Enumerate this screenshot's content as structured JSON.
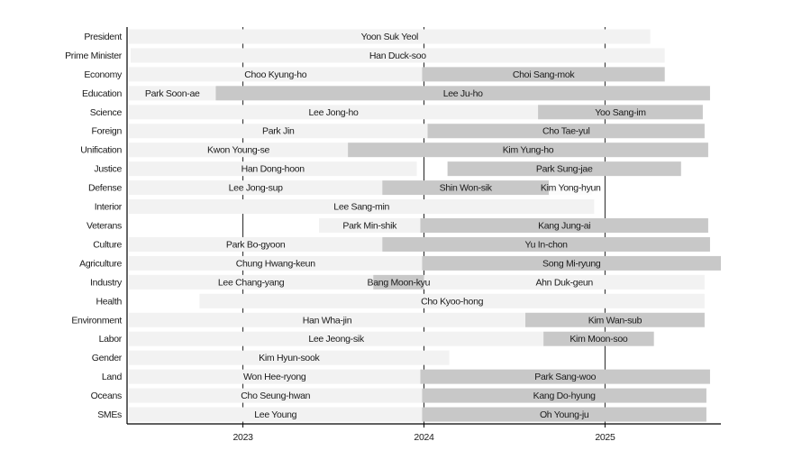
{
  "chart_data": {
    "type": "gantt",
    "title": "",
    "xlabel": "",
    "ylabel": "",
    "xlim": [
      2022.36,
      2025.64
    ],
    "x_ticks": [
      2023,
      2024,
      2025
    ],
    "x_tick_labels": [
      "2023",
      "2024",
      "2025"
    ],
    "grid": "vertical lines at year ticks",
    "colors": {
      "first_tenure": "#f2f2f2",
      "successor": "#c8c8c8",
      "axis": "#000000"
    },
    "rows": [
      {
        "role": "President",
        "terms": [
          {
            "name": "Yoon Suk Yeol",
            "start": 2022.37,
            "end": 2025.25,
            "shade": "light"
          }
        ]
      },
      {
        "role": "Prime Minister",
        "terms": [
          {
            "name": "Han Duck-soo",
            "start": 2022.38,
            "end": 2025.33,
            "shade": "light"
          }
        ]
      },
      {
        "role": "Economy",
        "terms": [
          {
            "name": "Choo Kyung-ho",
            "start": 2022.37,
            "end": 2023.99,
            "shade": "light"
          },
          {
            "name": "Choi Sang-mok",
            "start": 2023.99,
            "end": 2025.33,
            "shade": "dark"
          }
        ]
      },
      {
        "role": "Education",
        "terms": [
          {
            "name": "Park Soon-ae",
            "start": 2022.37,
            "end": 2022.85,
            "shade": "light"
          },
          {
            "name": "Lee Ju-ho",
            "start": 2022.85,
            "end": 2025.58,
            "shade": "dark"
          }
        ]
      },
      {
        "role": "Science",
        "terms": [
          {
            "name": "Lee Jong-ho",
            "start": 2022.37,
            "end": 2024.63,
            "shade": "light"
          },
          {
            "name": "Yoo Sang-im",
            "start": 2024.63,
            "end": 2025.54,
            "shade": "dark"
          }
        ]
      },
      {
        "role": "Foreign",
        "terms": [
          {
            "name": "Park Jin",
            "start": 2022.37,
            "end": 2024.02,
            "shade": "light"
          },
          {
            "name": "Cho Tae-yul",
            "start": 2024.02,
            "end": 2025.55,
            "shade": "dark"
          }
        ]
      },
      {
        "role": "Unification",
        "terms": [
          {
            "name": "Kwon Young-se",
            "start": 2022.37,
            "end": 2023.58,
            "shade": "light"
          },
          {
            "name": "Kim Yung-ho",
            "start": 2023.58,
            "end": 2025.57,
            "shade": "dark"
          }
        ]
      },
      {
        "role": "Justice",
        "terms": [
          {
            "name": "Han Dong-hoon",
            "start": 2022.37,
            "end": 2023.96,
            "shade": "light"
          },
          {
            "name": "Park Sung-jae",
            "start": 2024.13,
            "end": 2025.42,
            "shade": "dark"
          }
        ]
      },
      {
        "role": "Defense",
        "terms": [
          {
            "name": "Lee Jong-sup",
            "start": 2022.37,
            "end": 2023.77,
            "shade": "light"
          },
          {
            "name": "Shin Won-sik",
            "start": 2023.77,
            "end": 2024.69,
            "shade": "dark"
          },
          {
            "name": "Kim Yong-hyun",
            "start": 2024.69,
            "end": 2024.93,
            "shade": "blank"
          }
        ]
      },
      {
        "role": "Interior",
        "terms": [
          {
            "name": "Lee Sang-min",
            "start": 2022.37,
            "end": 2024.94,
            "shade": "light"
          }
        ]
      },
      {
        "role": "Veterans",
        "terms": [
          {
            "name": "Park Min-shik",
            "start": 2023.42,
            "end": 2023.98,
            "shade": "light"
          },
          {
            "name": "Kang Jung-ai",
            "start": 2023.98,
            "end": 2025.57,
            "shade": "dark"
          }
        ]
      },
      {
        "role": "Culture",
        "terms": [
          {
            "name": "Park Bo-gyoon",
            "start": 2022.37,
            "end": 2023.77,
            "shade": "light"
          },
          {
            "name": "Yu In-chon",
            "start": 2023.77,
            "end": 2025.58,
            "shade": "dark"
          }
        ]
      },
      {
        "role": "Agriculture",
        "terms": [
          {
            "name": "Chung Hwang-keun",
            "start": 2022.37,
            "end": 2023.99,
            "shade": "light"
          },
          {
            "name": "Song Mi-ryung",
            "start": 2023.99,
            "end": 2025.64,
            "shade": "dark"
          }
        ]
      },
      {
        "role": "Industry",
        "terms": [
          {
            "name": "Lee Chang-yang",
            "start": 2022.37,
            "end": 2023.72,
            "shade": "light"
          },
          {
            "name": "Bang Moon-kyu",
            "start": 2023.72,
            "end": 2024.0,
            "shade": "dark"
          },
          {
            "name": "Ahn Duk-geun",
            "start": 2024.0,
            "end": 2025.55,
            "shade": "light"
          }
        ]
      },
      {
        "role": "Health",
        "terms": [
          {
            "name": "Cho Kyoo-hong",
            "start": 2022.76,
            "end": 2025.55,
            "shade": "light"
          }
        ]
      },
      {
        "role": "Environment",
        "terms": [
          {
            "name": "Han Wha-jin",
            "start": 2022.37,
            "end": 2024.56,
            "shade": "light"
          },
          {
            "name": "Kim Wan-sub",
            "start": 2024.56,
            "end": 2025.55,
            "shade": "dark"
          }
        ]
      },
      {
        "role": "Labor",
        "terms": [
          {
            "name": "Lee Jeong-sik",
            "start": 2022.37,
            "end": 2024.66,
            "shade": "light"
          },
          {
            "name": "Kim Moon-soo",
            "start": 2024.66,
            "end": 2025.27,
            "shade": "dark"
          }
        ]
      },
      {
        "role": "Gender",
        "terms": [
          {
            "name": "Kim Hyun-sook",
            "start": 2022.37,
            "end": 2024.14,
            "shade": "light"
          }
        ]
      },
      {
        "role": "Land",
        "terms": [
          {
            "name": "Won Hee-ryong",
            "start": 2022.37,
            "end": 2023.98,
            "shade": "light"
          },
          {
            "name": "Park Sang-woo",
            "start": 2023.98,
            "end": 2025.58,
            "shade": "dark"
          }
        ]
      },
      {
        "role": "Oceans",
        "terms": [
          {
            "name": "Cho Seung-hwan",
            "start": 2022.37,
            "end": 2023.99,
            "shade": "light"
          },
          {
            "name": "Kang Do-hyung",
            "start": 2023.99,
            "end": 2025.56,
            "shade": "dark"
          }
        ]
      },
      {
        "role": "SMEs",
        "terms": [
          {
            "name": "Lee Young",
            "start": 2022.37,
            "end": 2023.99,
            "shade": "light"
          },
          {
            "name": "Oh Young-ju",
            "start": 2023.99,
            "end": 2025.56,
            "shade": "dark"
          }
        ]
      }
    ]
  }
}
